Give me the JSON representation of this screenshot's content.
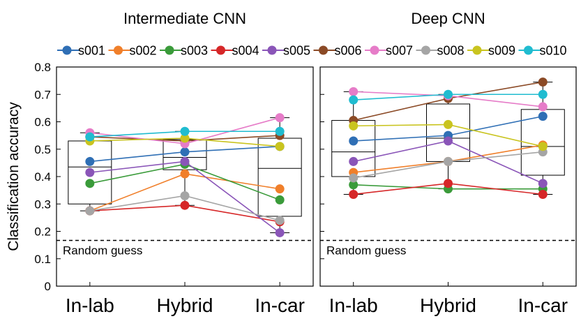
{
  "chart_data": {
    "type": "line",
    "ylabel": "Classification accuracy",
    "ylim": [
      0,
      0.8
    ],
    "yticks": [
      "0",
      "0.1",
      "0.2",
      "0.3",
      "0.4",
      "0.5",
      "0.6",
      "0.7",
      "0.8"
    ],
    "categories": [
      "In-lab",
      "Hybrid",
      "In-car"
    ],
    "random_guess": {
      "label": "Random guess",
      "value": 0.167
    },
    "subjects": [
      {
        "name": "s001",
        "color": "#2f6fb5"
      },
      {
        "name": "s002",
        "color": "#f07f2a"
      },
      {
        "name": "s003",
        "color": "#3a9b3a"
      },
      {
        "name": "s004",
        "color": "#d62728"
      },
      {
        "name": "s005",
        "color": "#8a55b8"
      },
      {
        "name": "s006",
        "color": "#8b4a26"
      },
      {
        "name": "s007",
        "color": "#e67cc8"
      },
      {
        "name": "s008",
        "color": "#a5a5a5"
      },
      {
        "name": "s009",
        "color": "#c9c41f"
      },
      {
        "name": "s010",
        "color": "#20bcd0"
      }
    ],
    "panels": [
      {
        "title": "Intermediate CNN",
        "series": [
          {
            "name": "s001",
            "values": [
              0.455,
              0.49,
              0.51
            ]
          },
          {
            "name": "s002",
            "values": [
              0.275,
              0.41,
              0.355
            ]
          },
          {
            "name": "s003",
            "values": [
              0.375,
              0.445,
              0.315
            ]
          },
          {
            "name": "s004",
            "values": [
              0.275,
              0.295,
              0.235
            ]
          },
          {
            "name": "s005",
            "values": [
              0.415,
              0.455,
              0.195
            ]
          },
          {
            "name": "s006",
            "values": [
              0.545,
              0.53,
              0.55
            ]
          },
          {
            "name": "s007",
            "values": [
              0.56,
              0.52,
              0.615
            ]
          },
          {
            "name": "s008",
            "values": [
              0.275,
              0.33,
              0.24
            ]
          },
          {
            "name": "s009",
            "values": [
              0.53,
              0.54,
              0.51
            ]
          },
          {
            "name": "s010",
            "values": [
              0.545,
              0.565,
              0.565
            ]
          }
        ],
        "boxes": [
          {
            "whisker_low": 0.275,
            "q1": 0.3,
            "median": 0.435,
            "q3": 0.53,
            "whisker_high": 0.56
          },
          {
            "whisker_low": 0.295,
            "q1": 0.425,
            "median": 0.47,
            "q3": 0.535,
            "whisker_high": 0.565
          },
          {
            "whisker_low": 0.195,
            "q1": 0.255,
            "median": 0.43,
            "q3": 0.54,
            "whisker_high": 0.615
          }
        ]
      },
      {
        "title": "Deep CNN",
        "series": [
          {
            "name": "s001",
            "values": [
              0.53,
              0.55,
              0.62
            ]
          },
          {
            "name": "s002",
            "values": [
              0.415,
              0.455,
              0.515
            ]
          },
          {
            "name": "s003",
            "values": [
              0.37,
              0.355,
              0.355
            ]
          },
          {
            "name": "s004",
            "values": [
              0.335,
              0.375,
              0.335
            ]
          },
          {
            "name": "s005",
            "values": [
              0.455,
              0.53,
              0.375
            ]
          },
          {
            "name": "s006",
            "values": [
              0.605,
              0.685,
              0.745
            ]
          },
          {
            "name": "s007",
            "values": [
              0.71,
              0.695,
              0.655
            ]
          },
          {
            "name": "s008",
            "values": [
              0.395,
              0.455,
              0.49
            ]
          },
          {
            "name": "s009",
            "values": [
              0.585,
              0.59,
              0.51
            ]
          },
          {
            "name": "s010",
            "values": [
              0.68,
              0.7,
              0.7
            ]
          }
        ],
        "boxes": [
          {
            "whisker_low": 0.335,
            "q1": 0.4,
            "median": 0.49,
            "q3": 0.605,
            "whisker_high": 0.71
          },
          {
            "whisker_low": 0.355,
            "q1": 0.455,
            "median": 0.54,
            "q3": 0.665,
            "whisker_high": 0.7
          },
          {
            "whisker_low": 0.335,
            "q1": 0.405,
            "median": 0.51,
            "q3": 0.645,
            "whisker_high": 0.745
          }
        ]
      }
    ]
  }
}
